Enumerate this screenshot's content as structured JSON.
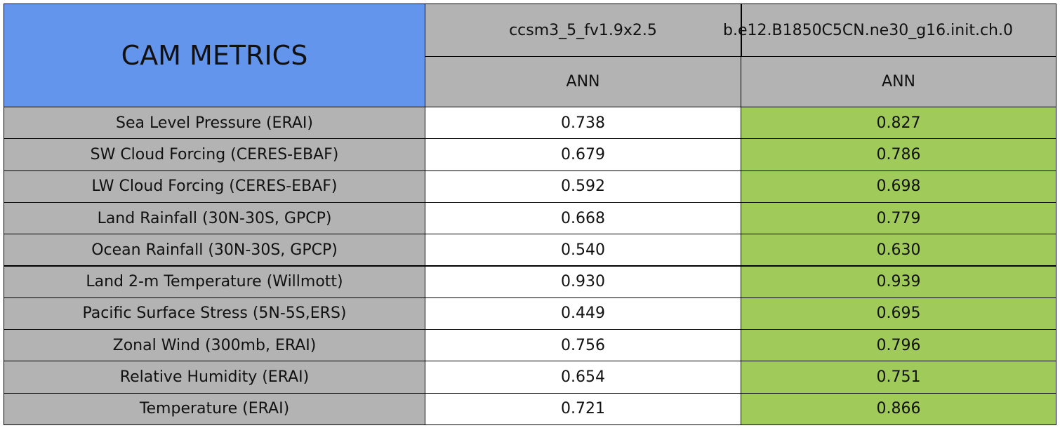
{
  "header": {
    "title": "CAM METRICS",
    "columns": [
      {
        "name": "ccsm3_5_fv1.9x2.5",
        "period": "ANN"
      },
      {
        "name": "b.e12.B1850C5CN.ne30_g16.init.ch.0",
        "period": "ANN"
      }
    ]
  },
  "table": {
    "rows": [
      [
        "Sea Level Pressure (ERAI)",
        "0.738",
        "0.827"
      ],
      [
        "SW Cloud Forcing (CERES-EBAF)",
        "0.679",
        "0.786"
      ],
      [
        "LW Cloud Forcing (CERES-EBAF)",
        "0.592",
        "0.698"
      ],
      [
        "Land Rainfall (30N-30S, GPCP)",
        "0.668",
        "0.779"
      ],
      [
        "Ocean Rainfall (30N-30S, GPCP)",
        "0.540",
        "0.630"
      ],
      [
        "Land 2-m Temperature (Willmott)",
        "0.930",
        "0.939"
      ],
      [
        "Pacific Surface Stress (5N-5S,ERS)",
        "0.449",
        "0.695"
      ],
      [
        "Zonal Wind (300mb, ERAI)",
        "0.756",
        "0.796"
      ],
      [
        "Relative Humidity (ERAI)",
        "0.654",
        "0.751"
      ],
      [
        "Temperature (ERAI)",
        "0.721",
        "0.866"
      ]
    ]
  }
}
